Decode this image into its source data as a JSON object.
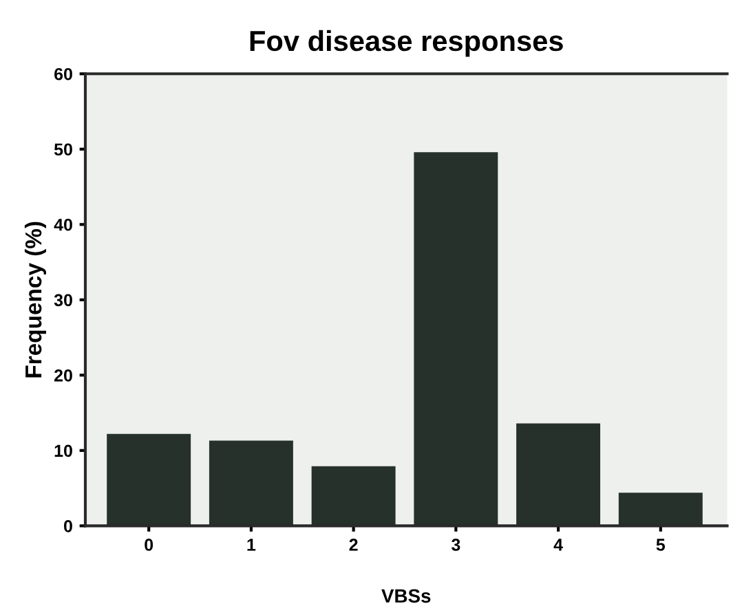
{
  "chart_data": {
    "type": "bar",
    "title": "Fov disease responses",
    "xlabel": "VBSs",
    "ylabel": "Frequency (%)",
    "categories": [
      "0",
      "1",
      "2",
      "3",
      "4",
      "5"
    ],
    "values": [
      12.2,
      11.3,
      7.9,
      49.6,
      13.6,
      4.4
    ],
    "color": "#27312b",
    "ylim": [
      0,
      60
    ],
    "yticks": [
      0,
      10,
      20,
      30,
      40,
      50,
      60
    ],
    "grid": false
  }
}
